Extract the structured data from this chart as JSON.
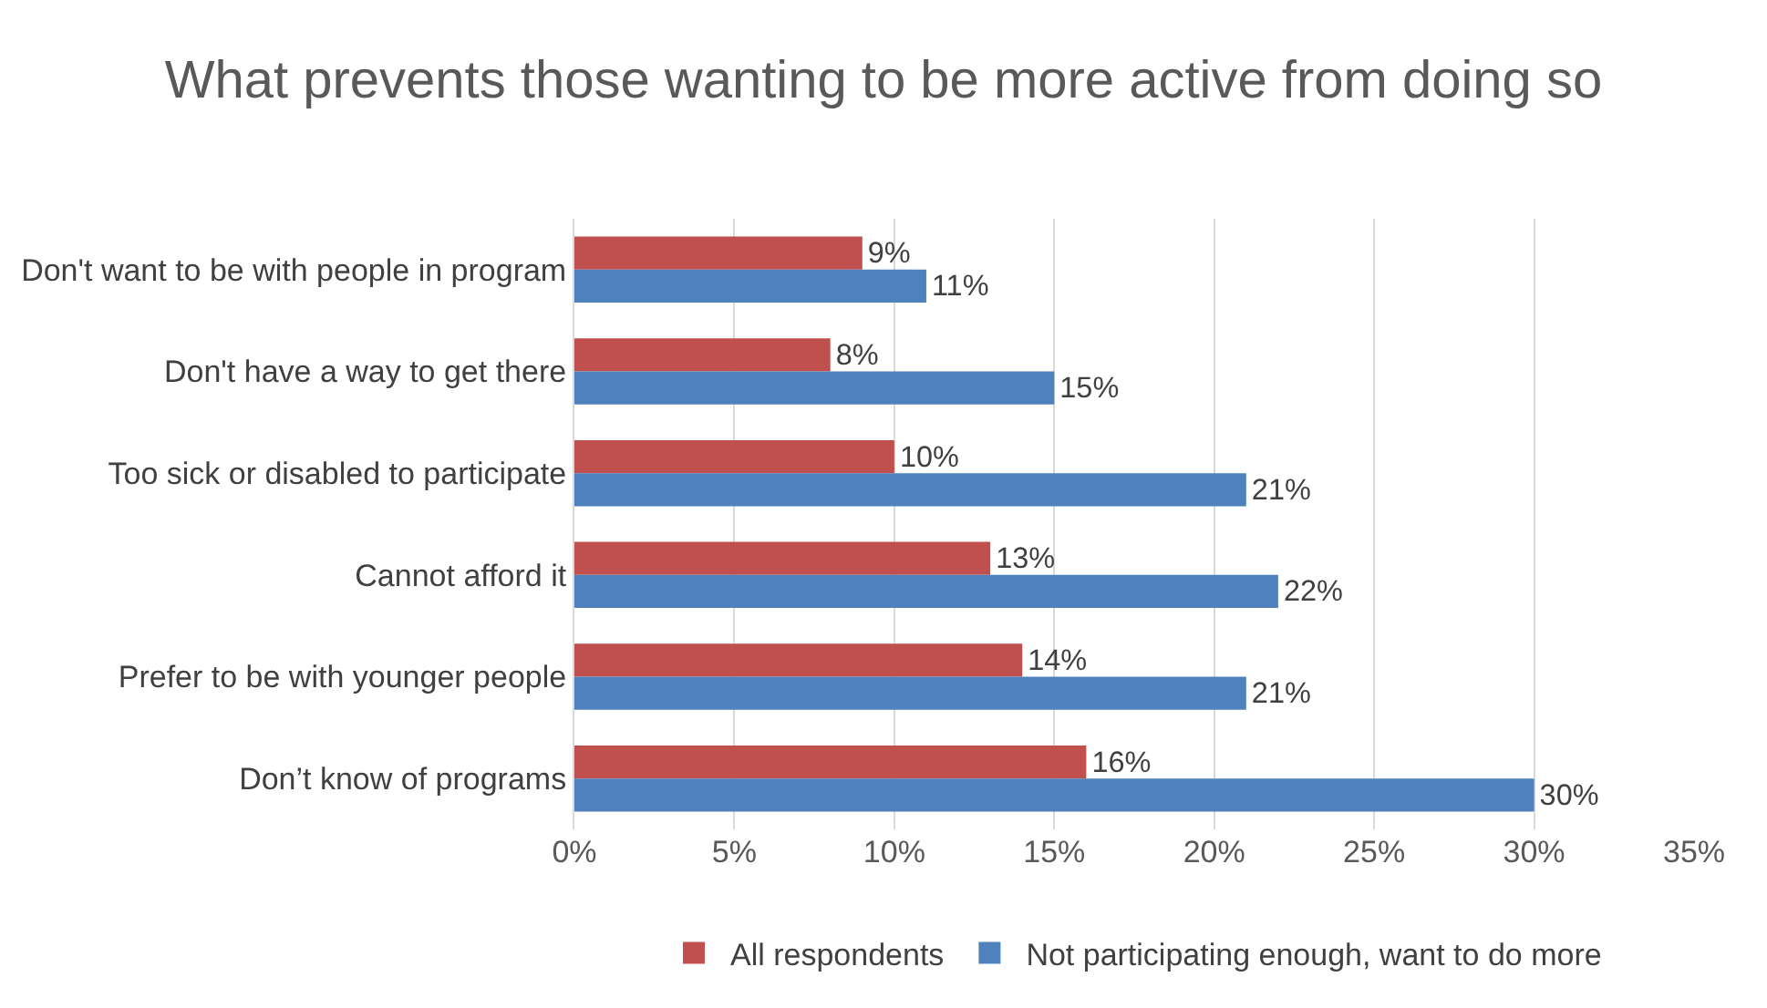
{
  "chart_data": {
    "type": "bar",
    "orientation": "horizontal",
    "title": "What prevents those wanting to be more active from doing so",
    "categories": [
      "Don't want to be with people in program",
      "Don't have a way to get there",
      "Too sick or disabled to participate",
      "Cannot afford it",
      "Prefer to be with younger people",
      "Don’t know of programs"
    ],
    "series": [
      {
        "name": "All respondents",
        "color": "#c0504d",
        "values": [
          9,
          8,
          10,
          13,
          14,
          16
        ],
        "value_labels": [
          "9%",
          "8%",
          "10%",
          "13%",
          "14%",
          "16%"
        ]
      },
      {
        "name": "Not participating enough, want to do more",
        "color": "#4f81bd",
        "values": [
          11,
          15,
          21,
          22,
          21,
          30
        ],
        "value_labels": [
          "11%",
          "15%",
          "21%",
          "22%",
          "21%",
          "30%"
        ]
      }
    ],
    "xlim": [
      0,
      35
    ],
    "xticks": [
      {
        "value": 0,
        "label": "0%"
      },
      {
        "value": 5,
        "label": "5%"
      },
      {
        "value": 10,
        "label": "10%"
      },
      {
        "value": 15,
        "label": "15%"
      },
      {
        "value": 20,
        "label": "20%"
      },
      {
        "value": 25,
        "label": "25%"
      },
      {
        "value": 30,
        "label": "30%"
      },
      {
        "value": 35,
        "label": "35%"
      }
    ],
    "grid": "x",
    "legend": "bottom"
  }
}
